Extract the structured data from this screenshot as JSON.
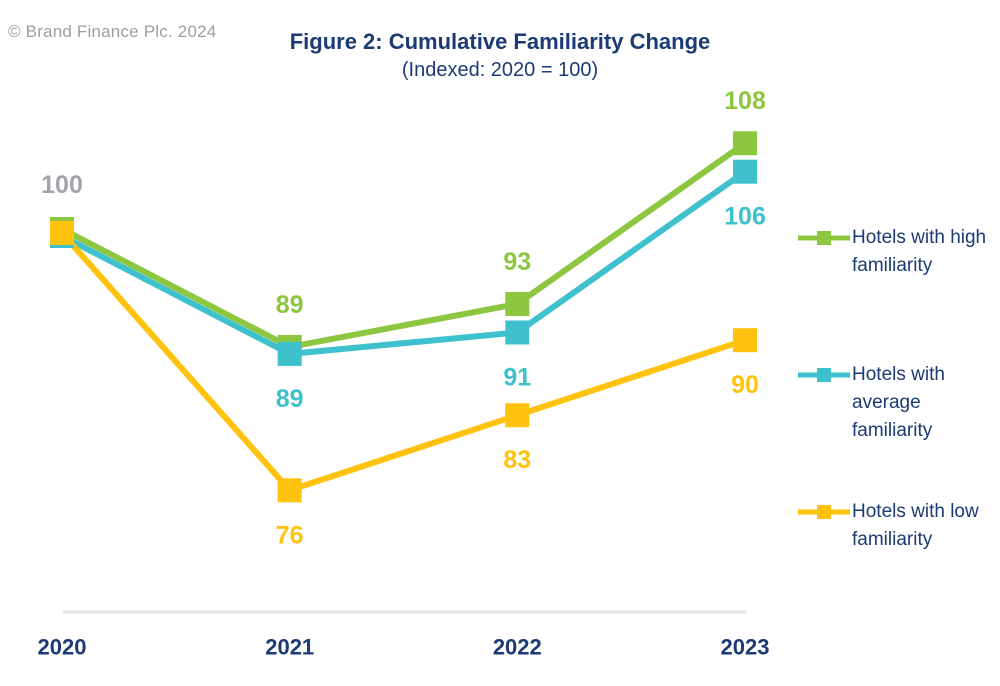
{
  "header": {
    "copyright": "© Brand Finance Plc. 2024",
    "title": "Figure 2: Cumulative Familiarity Change",
    "subtitle": "(Indexed: 2020 = 100)"
  },
  "chart_data": {
    "type": "line",
    "title": "Figure 2: Cumulative Familiarity Change",
    "subtitle": "(Indexed: 2020 = 100)",
    "categories": [
      "2020",
      "2021",
      "2022",
      "2023"
    ],
    "series": [
      {
        "name": "Hotels with high familiarity",
        "color": "#8DC63F",
        "values": [
          100,
          89,
          93,
          108
        ],
        "value_label_position": "above"
      },
      {
        "name": "Hotels with average familiarity",
        "color": "#3EC1CD",
        "values": [
          100,
          89,
          91,
          106
        ],
        "value_label_position": "below"
      },
      {
        "name": "Hotels with low familiarity",
        "color": "#FFC20E",
        "values": [
          100,
          76,
          83,
          90
        ],
        "value_label_position": "below"
      }
    ],
    "base_point_label": {
      "text": "100",
      "color": "#A2A4A9"
    },
    "marker": "square",
    "grid": false,
    "legend_position": "right",
    "ylim": [
      70,
      116
    ],
    "axis_label_color": "#1C3A74",
    "axis_line_color": "#E4E4E4"
  },
  "legend": {
    "text_color": "#1C3A74",
    "items": [
      {
        "lines": [
          "Hotels with high",
          "familiarity"
        ],
        "color": "#8DC63F"
      },
      {
        "lines": [
          "Hotels with",
          "average familiarity"
        ],
        "color": "#3EC1CD"
      },
      {
        "lines": [
          "Hotels with low",
          "familiarity"
        ],
        "color": "#FFC20E"
      }
    ]
  }
}
